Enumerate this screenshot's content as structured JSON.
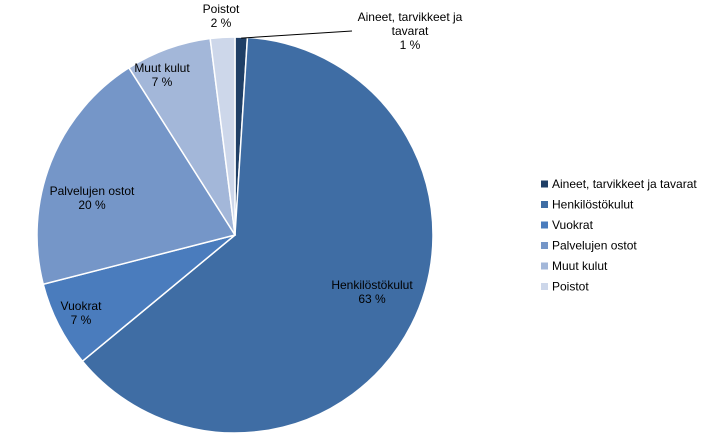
{
  "chart_data": {
    "type": "pie",
    "title": "",
    "legend_position": "right",
    "start_angle_deg": 0,
    "direction": "clockwise",
    "slices": [
      {
        "name": "Aineet, tarvikkeet ja tavarat",
        "value": 1,
        "label_lines": [
          "Aineet, tarvikkeet ja",
          "tavarat",
          "1 %"
        ],
        "color": "#1f3f66"
      },
      {
        "name": "Henkilöstökulut",
        "value": 63,
        "label_lines": [
          "Henkilöstökulut",
          "63 %"
        ],
        "color": "#3f6da4"
      },
      {
        "name": "Vuokrat",
        "value": 7,
        "label_lines": [
          "Vuokrat",
          "7 %"
        ],
        "color": "#4a7cbd"
      },
      {
        "name": "Palvelujen ostot",
        "value": 20,
        "label_lines": [
          "Palvelujen ostot",
          "20 %"
        ],
        "color": "#7596c8"
      },
      {
        "name": "Muut kulut",
        "value": 7,
        "label_lines": [
          "Muut kulut",
          "7 %"
        ],
        "color": "#a3b7d9"
      },
      {
        "name": "Poistot",
        "value": 2,
        "label_lines": [
          "Poistot",
          "2 %"
        ],
        "color": "#cdd7ea"
      }
    ]
  }
}
